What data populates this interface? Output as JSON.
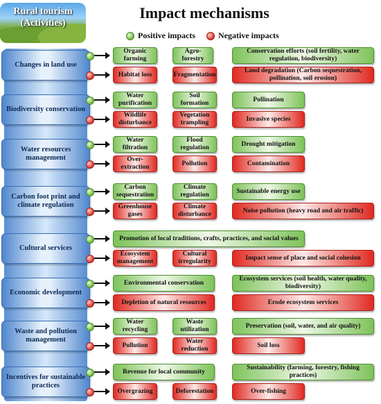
{
  "header": {
    "logo_text": "Rural tourism\n(Activities)",
    "title": "Impact mechanisms",
    "legend_positive": "Positive impacts",
    "legend_negative": "Negative impacts"
  },
  "colors": {
    "positive": "#6cb23c",
    "negative": "#d8322a",
    "spine": "#5b8fd0"
  },
  "rows": [
    {
      "category": "Changes in land use",
      "positive": [
        "Organic farming",
        "Agro-forestry",
        "Conservation efforts (soil fertility, water regulation, biodiversity)"
      ],
      "negative": [
        "Habitat loss",
        "Fragmentation",
        "Land degradation (Carbon sequestration, pollination, soil erosion)"
      ]
    },
    {
      "category": "Biodiversity conservation",
      "positive": [
        "Water purification",
        "Soil formation",
        "Pollination"
      ],
      "negative": [
        "Wildlife disturbance",
        "Vegetation trampling",
        "Invasive species"
      ]
    },
    {
      "category": "Water resources management",
      "positive": [
        "Water filtration",
        "Flood regulation",
        "Drought mitigation"
      ],
      "negative": [
        "Over-extraction",
        "Pollution",
        "Contamination"
      ]
    },
    {
      "category": "Carbon foot print and climate regulation",
      "positive": [
        "Carbon sequestration",
        "Climate regulation",
        "Sustainable energy use"
      ],
      "negative": [
        "Greenhouse gases",
        "Climate disturbance",
        "Noise pollution (heavy road and air traffic)"
      ]
    },
    {
      "category": "Cultural services",
      "positive": [
        "Promotion of local traditions, crafts, practices, and social values"
      ],
      "negative": [
        "Ecosystem management",
        "Cultural irregularity",
        "Impact sense of place and social cohesion"
      ]
    },
    {
      "category": "Economic development",
      "positive": [
        "Environmental conservation",
        "Ecosystem services (soil health, water quality, biodiversity)"
      ],
      "negative": [
        "Depletion of natural resources",
        "Erode ecosystem services"
      ]
    },
    {
      "category": "Waste and pollution management",
      "positive": [
        "Water recycling",
        "Waste utilization",
        "Preservation (soil, water, and air quality)"
      ],
      "negative": [
        "Pollution",
        "Water reduction",
        "Soil loss"
      ]
    },
    {
      "category": "Incentives for sustainable practices",
      "positive": [
        "Revenue for local community",
        "Sustainability (farming, forestry, fishing practices)"
      ],
      "negative": [
        "Overgrazing",
        "Deforestation",
        "Over-fishing"
      ]
    }
  ]
}
